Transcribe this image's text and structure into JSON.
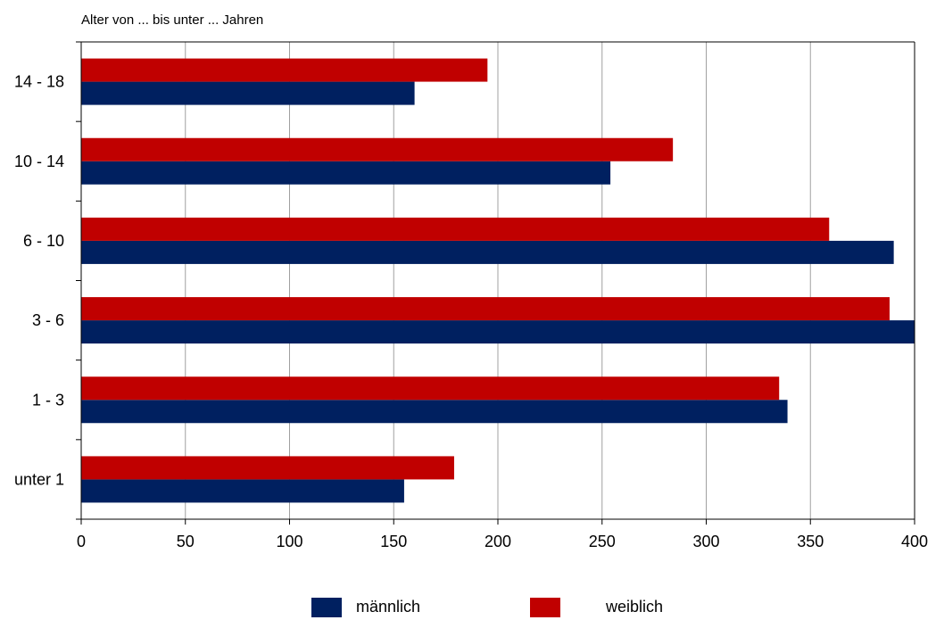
{
  "chart_data": {
    "type": "bar",
    "orientation": "horizontal",
    "ylabel": "Alter von ... bis unter ... Jahren",
    "categories": [
      "unter 1",
      "1 - 3",
      "3 - 6",
      "6 - 10",
      "10 - 14",
      "14 - 18"
    ],
    "series": [
      {
        "name": "männlich",
        "color": "#002060",
        "values": [
          155,
          339,
          401,
          390,
          254,
          160
        ]
      },
      {
        "name": "weiblich",
        "color": "#c00000",
        "values": [
          179,
          335,
          388,
          359,
          284,
          195
        ]
      }
    ],
    "xlim": [
      0,
      400
    ],
    "xticks": [
      0,
      50,
      100,
      150,
      200,
      250,
      300,
      350,
      400
    ],
    "grid": "vertical",
    "legend_position": "bottom"
  }
}
